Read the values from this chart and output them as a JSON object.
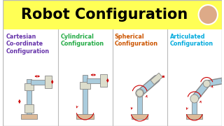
{
  "title": "Robot Configuration",
  "title_fontsize": 15,
  "title_color": "#000000",
  "title_bg": "#FFFF55",
  "bg_bottom": "#FFFFFF",
  "sections": [
    {
      "label": "Cartesian\nCo-ordinate\nConfiguration",
      "color": "#6633AA"
    },
    {
      "label": "Cylindrical\nConfiguration",
      "color": "#22AA44"
    },
    {
      "label": "Spherical\nConfiguration",
      "color": "#CC5500"
    },
    {
      "label": "Articulated\nConfiguration",
      "color": "#00AADD"
    }
  ],
  "divider_color": "#BBBBBB",
  "robot_body_color": "#AACCDD",
  "robot_joint_color": "#DDDDCC",
  "robot_base_color": "#DDBB99",
  "arrow_color": "#CC0000",
  "label_fontsize": 5.8,
  "section_bg": "#FFFFFF"
}
